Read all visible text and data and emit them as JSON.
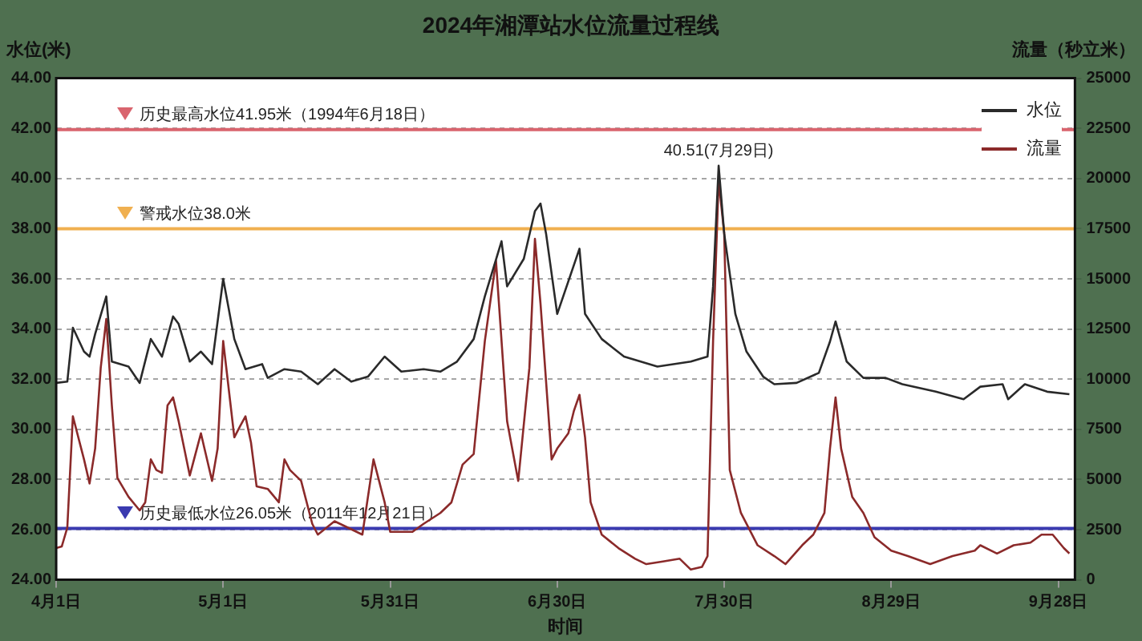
{
  "chart_data": {
    "type": "line",
    "title": "2024年湘潭站水位流量过程线",
    "xlabel": "时间",
    "ylabel": "水位(米)",
    "y2label": "流量（秒立米）",
    "xlim": [
      "2024-04-01",
      "2024-10-01"
    ],
    "xticks": [
      {
        "value": "2024-04-01",
        "label": "4月1日"
      },
      {
        "value": "2024-05-01",
        "label": "5月1日"
      },
      {
        "value": "2024-05-31",
        "label": "5月31日"
      },
      {
        "value": "2024-06-30",
        "label": "6月30日"
      },
      {
        "value": "2024-07-30",
        "label": "7月30日"
      },
      {
        "value": "2024-08-29",
        "label": "8月29日"
      },
      {
        "value": "2024-09-28",
        "label": "9月28日"
      }
    ],
    "ylim": [
      24,
      44
    ],
    "yticks": [
      {
        "value": 24,
        "label": "24.00"
      },
      {
        "value": 26,
        "label": "26.00"
      },
      {
        "value": 28,
        "label": "28.00"
      },
      {
        "value": 30,
        "label": "30.00"
      },
      {
        "value": 32,
        "label": "32.00"
      },
      {
        "value": 34,
        "label": "34.00"
      },
      {
        "value": 36,
        "label": "36.00"
      },
      {
        "value": 38,
        "label": "38.00"
      },
      {
        "value": 40,
        "label": "40.00"
      },
      {
        "value": 42,
        "label": "42.00"
      },
      {
        "value": 44,
        "label": "44.00"
      }
    ],
    "y2lim": [
      0,
      25000
    ],
    "y2ticks": [
      0,
      2500,
      5000,
      7500,
      10000,
      12500,
      15000,
      17500,
      20000,
      22500,
      25000
    ],
    "grid": "y",
    "legend": "top right",
    "marker": "none",
    "line_style": "solid",
    "ref_lines": [
      {
        "axis": "y",
        "value": 41.95,
        "label": "历史最高水位41.95米（1994年6月18日）",
        "color": "#d9646e"
      },
      {
        "axis": "y",
        "value": 38.0,
        "label": "警戒水位38.0米",
        "color": "#f0b050"
      },
      {
        "axis": "y",
        "value": 26.05,
        "label": "历史最低水位26.05米（2011年12月21日）",
        "color": "#3a3ab0"
      }
    ],
    "annotations": [
      {
        "text": "40.51(7月29日)",
        "x": "2024-07-29",
        "y": 40.51
      }
    ],
    "series": [
      {
        "name": "水位",
        "color": "#2a2a2a",
        "x": [
          "2024-04-01",
          "2024-04-03",
          "2024-04-04",
          "2024-04-06",
          "2024-04-07",
          "2024-04-08",
          "2024-04-10",
          "2024-04-11",
          "2024-04-14",
          "2024-04-16",
          "2024-04-18",
          "2024-04-20",
          "2024-04-22",
          "2024-04-23",
          "2024-04-25",
          "2024-04-27",
          "2024-04-29",
          "2024-05-01",
          "2024-05-03",
          "2024-05-05",
          "2024-05-08",
          "2024-05-09",
          "2024-05-12",
          "2024-05-15",
          "2024-05-18",
          "2024-05-21",
          "2024-05-24",
          "2024-05-27",
          "2024-05-30",
          "2024-06-02",
          "2024-06-06",
          "2024-06-09",
          "2024-06-12",
          "2024-06-15",
          "2024-06-17",
          "2024-06-20",
          "2024-06-21",
          "2024-06-24",
          "2024-06-26",
          "2024-06-27",
          "2024-06-28",
          "2024-06-30",
          "2024-07-02",
          "2024-07-04",
          "2024-07-05",
          "2024-07-08",
          "2024-07-12",
          "2024-07-18",
          "2024-07-24",
          "2024-07-27",
          "2024-07-28",
          "2024-07-29",
          "2024-07-30",
          "2024-08-01",
          "2024-08-03",
          "2024-08-06",
          "2024-08-08",
          "2024-08-12",
          "2024-08-16",
          "2024-08-18",
          "2024-08-19",
          "2024-08-21",
          "2024-08-24",
          "2024-08-28",
          "2024-08-31",
          "2024-09-06",
          "2024-09-11",
          "2024-09-14",
          "2024-09-18",
          "2024-09-19",
          "2024-09-22",
          "2024-09-26",
          "2024-09-30"
        ],
        "values": [
          31.85,
          31.9,
          34.05,
          33.1,
          32.9,
          33.8,
          35.3,
          32.7,
          32.5,
          31.85,
          33.6,
          32.9,
          34.5,
          34.2,
          32.7,
          33.1,
          32.6,
          36.0,
          33.6,
          32.4,
          32.6,
          32.05,
          32.4,
          32.3,
          31.8,
          32.4,
          31.9,
          32.1,
          32.9,
          32.3,
          32.4,
          32.3,
          32.7,
          33.6,
          35.3,
          37.5,
          35.7,
          36.8,
          38.7,
          39.0,
          37.8,
          34.6,
          35.9,
          37.2,
          34.6,
          33.6,
          32.9,
          32.5,
          32.7,
          32.9,
          35.7,
          40.51,
          37.8,
          34.6,
          33.1,
          32.1,
          31.8,
          31.85,
          32.25,
          33.5,
          34.3,
          32.7,
          32.05,
          32.05,
          31.8,
          31.5,
          31.2,
          31.7,
          31.8,
          31.2,
          31.8,
          31.5,
          31.4
        ]
      },
      {
        "name": "流量",
        "axis": "y2",
        "color": "#8b2a2a",
        "x": [
          "2024-04-01",
          "2024-04-02",
          "2024-04-03",
          "2024-04-04",
          "2024-04-06",
          "2024-04-07",
          "2024-04-08",
          "2024-04-09",
          "2024-04-10",
          "2024-04-11",
          "2024-04-12",
          "2024-04-14",
          "2024-04-16",
          "2024-04-17",
          "2024-04-18",
          "2024-04-19",
          "2024-04-20",
          "2024-04-21",
          "2024-04-22",
          "2024-04-23",
          "2024-04-25",
          "2024-04-27",
          "2024-04-29",
          "2024-04-30",
          "2024-05-01",
          "2024-05-03",
          "2024-05-04",
          "2024-05-05",
          "2024-05-06",
          "2024-05-07",
          "2024-05-09",
          "2024-05-11",
          "2024-05-12",
          "2024-05-13",
          "2024-05-15",
          "2024-05-17",
          "2024-05-18",
          "2024-05-21",
          "2024-05-24",
          "2024-05-26",
          "2024-05-28",
          "2024-05-30",
          "2024-05-31",
          "2024-06-04",
          "2024-06-06",
          "2024-06-09",
          "2024-06-11",
          "2024-06-13",
          "2024-06-15",
          "2024-06-17",
          "2024-06-19",
          "2024-06-21",
          "2024-06-23",
          "2024-06-25",
          "2024-06-26",
          "2024-06-27",
          "2024-06-29",
          "2024-06-30",
          "2024-07-02",
          "2024-07-03",
          "2024-07-04",
          "2024-07-05",
          "2024-07-06",
          "2024-07-07",
          "2024-07-08",
          "2024-07-11",
          "2024-07-14",
          "2024-07-16",
          "2024-07-19",
          "2024-07-22",
          "2024-07-24",
          "2024-07-26",
          "2024-07-27",
          "2024-07-28",
          "2024-07-29",
          "2024-07-30",
          "2024-07-31",
          "2024-08-02",
          "2024-08-05",
          "2024-08-08",
          "2024-08-10",
          "2024-08-13",
          "2024-08-15",
          "2024-08-17",
          "2024-08-18",
          "2024-08-19",
          "2024-08-20",
          "2024-08-22",
          "2024-08-24",
          "2024-08-26",
          "2024-08-29",
          "2024-09-01",
          "2024-09-05",
          "2024-09-09",
          "2024-09-13",
          "2024-09-14",
          "2024-09-17",
          "2024-09-20",
          "2024-09-23",
          "2024-09-25",
          "2024-09-27",
          "2024-09-29",
          "2024-09-30"
        ],
        "values": [
          1580,
          1660,
          2600,
          8150,
          6000,
          4800,
          6540,
          10560,
          13000,
          8690,
          5070,
          4130,
          3460,
          3860,
          6000,
          5470,
          5330,
          8690,
          9090,
          7900,
          5200,
          7300,
          4930,
          6540,
          11900,
          7100,
          7640,
          8150,
          6830,
          4660,
          4530,
          3860,
          6000,
          5470,
          4930,
          2790,
          2250,
          2920,
          2520,
          2250,
          6000,
          3860,
          2390,
          2390,
          2790,
          3330,
          3860,
          5740,
          6270,
          11900,
          15900,
          7900,
          4930,
          10560,
          16990,
          13770,
          6000,
          6540,
          7300,
          8420,
          9220,
          7100,
          3860,
          3060,
          2250,
          1580,
          1050,
          780,
          910,
          1050,
          510,
          640,
          1180,
          11900,
          19900,
          17270,
          5470,
          3330,
          1720,
          1180,
          780,
          1720,
          2250,
          3330,
          6540,
          9090,
          6540,
          4130,
          3330,
          2120,
          1450,
          1180,
          780,
          1180,
          1450,
          1720,
          1310,
          1720,
          1850,
          2250,
          2250,
          1580,
          1310
        ]
      }
    ]
  }
}
